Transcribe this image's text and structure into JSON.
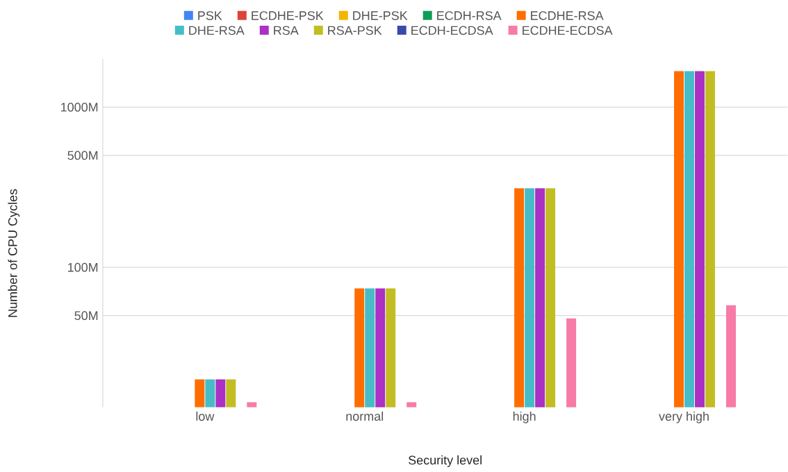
{
  "chart_data": {
    "type": "bar",
    "xlabel": "Security level",
    "ylabel": "Number of CPU Cycles",
    "categories": [
      "low",
      "normal",
      "high",
      "very high"
    ],
    "log": true,
    "grid": "y",
    "legend": "top",
    "ylim": [
      13.4,
      2000
    ],
    "yticks": [
      {
        "value": 50,
        "label": "50M"
      },
      {
        "value": 100,
        "label": "100M"
      },
      {
        "value": 500,
        "label": "500M"
      },
      {
        "value": 1000,
        "label": "1000M"
      }
    ],
    "series": [
      {
        "name": "PSK",
        "color": "#4285f4",
        "values": [
          null,
          null,
          null,
          null
        ]
      },
      {
        "name": "ECDHE-PSK",
        "color": "#db4437",
        "values": [
          null,
          null,
          null,
          null
        ]
      },
      {
        "name": "DHE-PSK",
        "color": "#f4b400",
        "values": [
          null,
          null,
          null,
          null
        ]
      },
      {
        "name": "ECDH-RSA",
        "color": "#0f9d58",
        "values": [
          null,
          null,
          null,
          null
        ]
      },
      {
        "name": "ECDHE-RSA",
        "color": "#ff6d00",
        "values": [
          20,
          74,
          312,
          1680
        ]
      },
      {
        "name": "DHE-RSA",
        "color": "#46bdc6",
        "values": [
          20,
          74,
          312,
          1680
        ]
      },
      {
        "name": "RSA",
        "color": "#ab30c4",
        "values": [
          20,
          74,
          312,
          1680
        ]
      },
      {
        "name": "RSA-PSK",
        "color": "#c2bd23",
        "values": [
          20,
          74,
          312,
          1680
        ]
      },
      {
        "name": "ECDH-ECDSA",
        "color": "#3949ab",
        "values": [
          null,
          null,
          null,
          null
        ]
      },
      {
        "name": "ECDHE-ECDSA",
        "color": "#f77ba7",
        "values": [
          14.4,
          14.4,
          48,
          58
        ]
      }
    ]
  }
}
